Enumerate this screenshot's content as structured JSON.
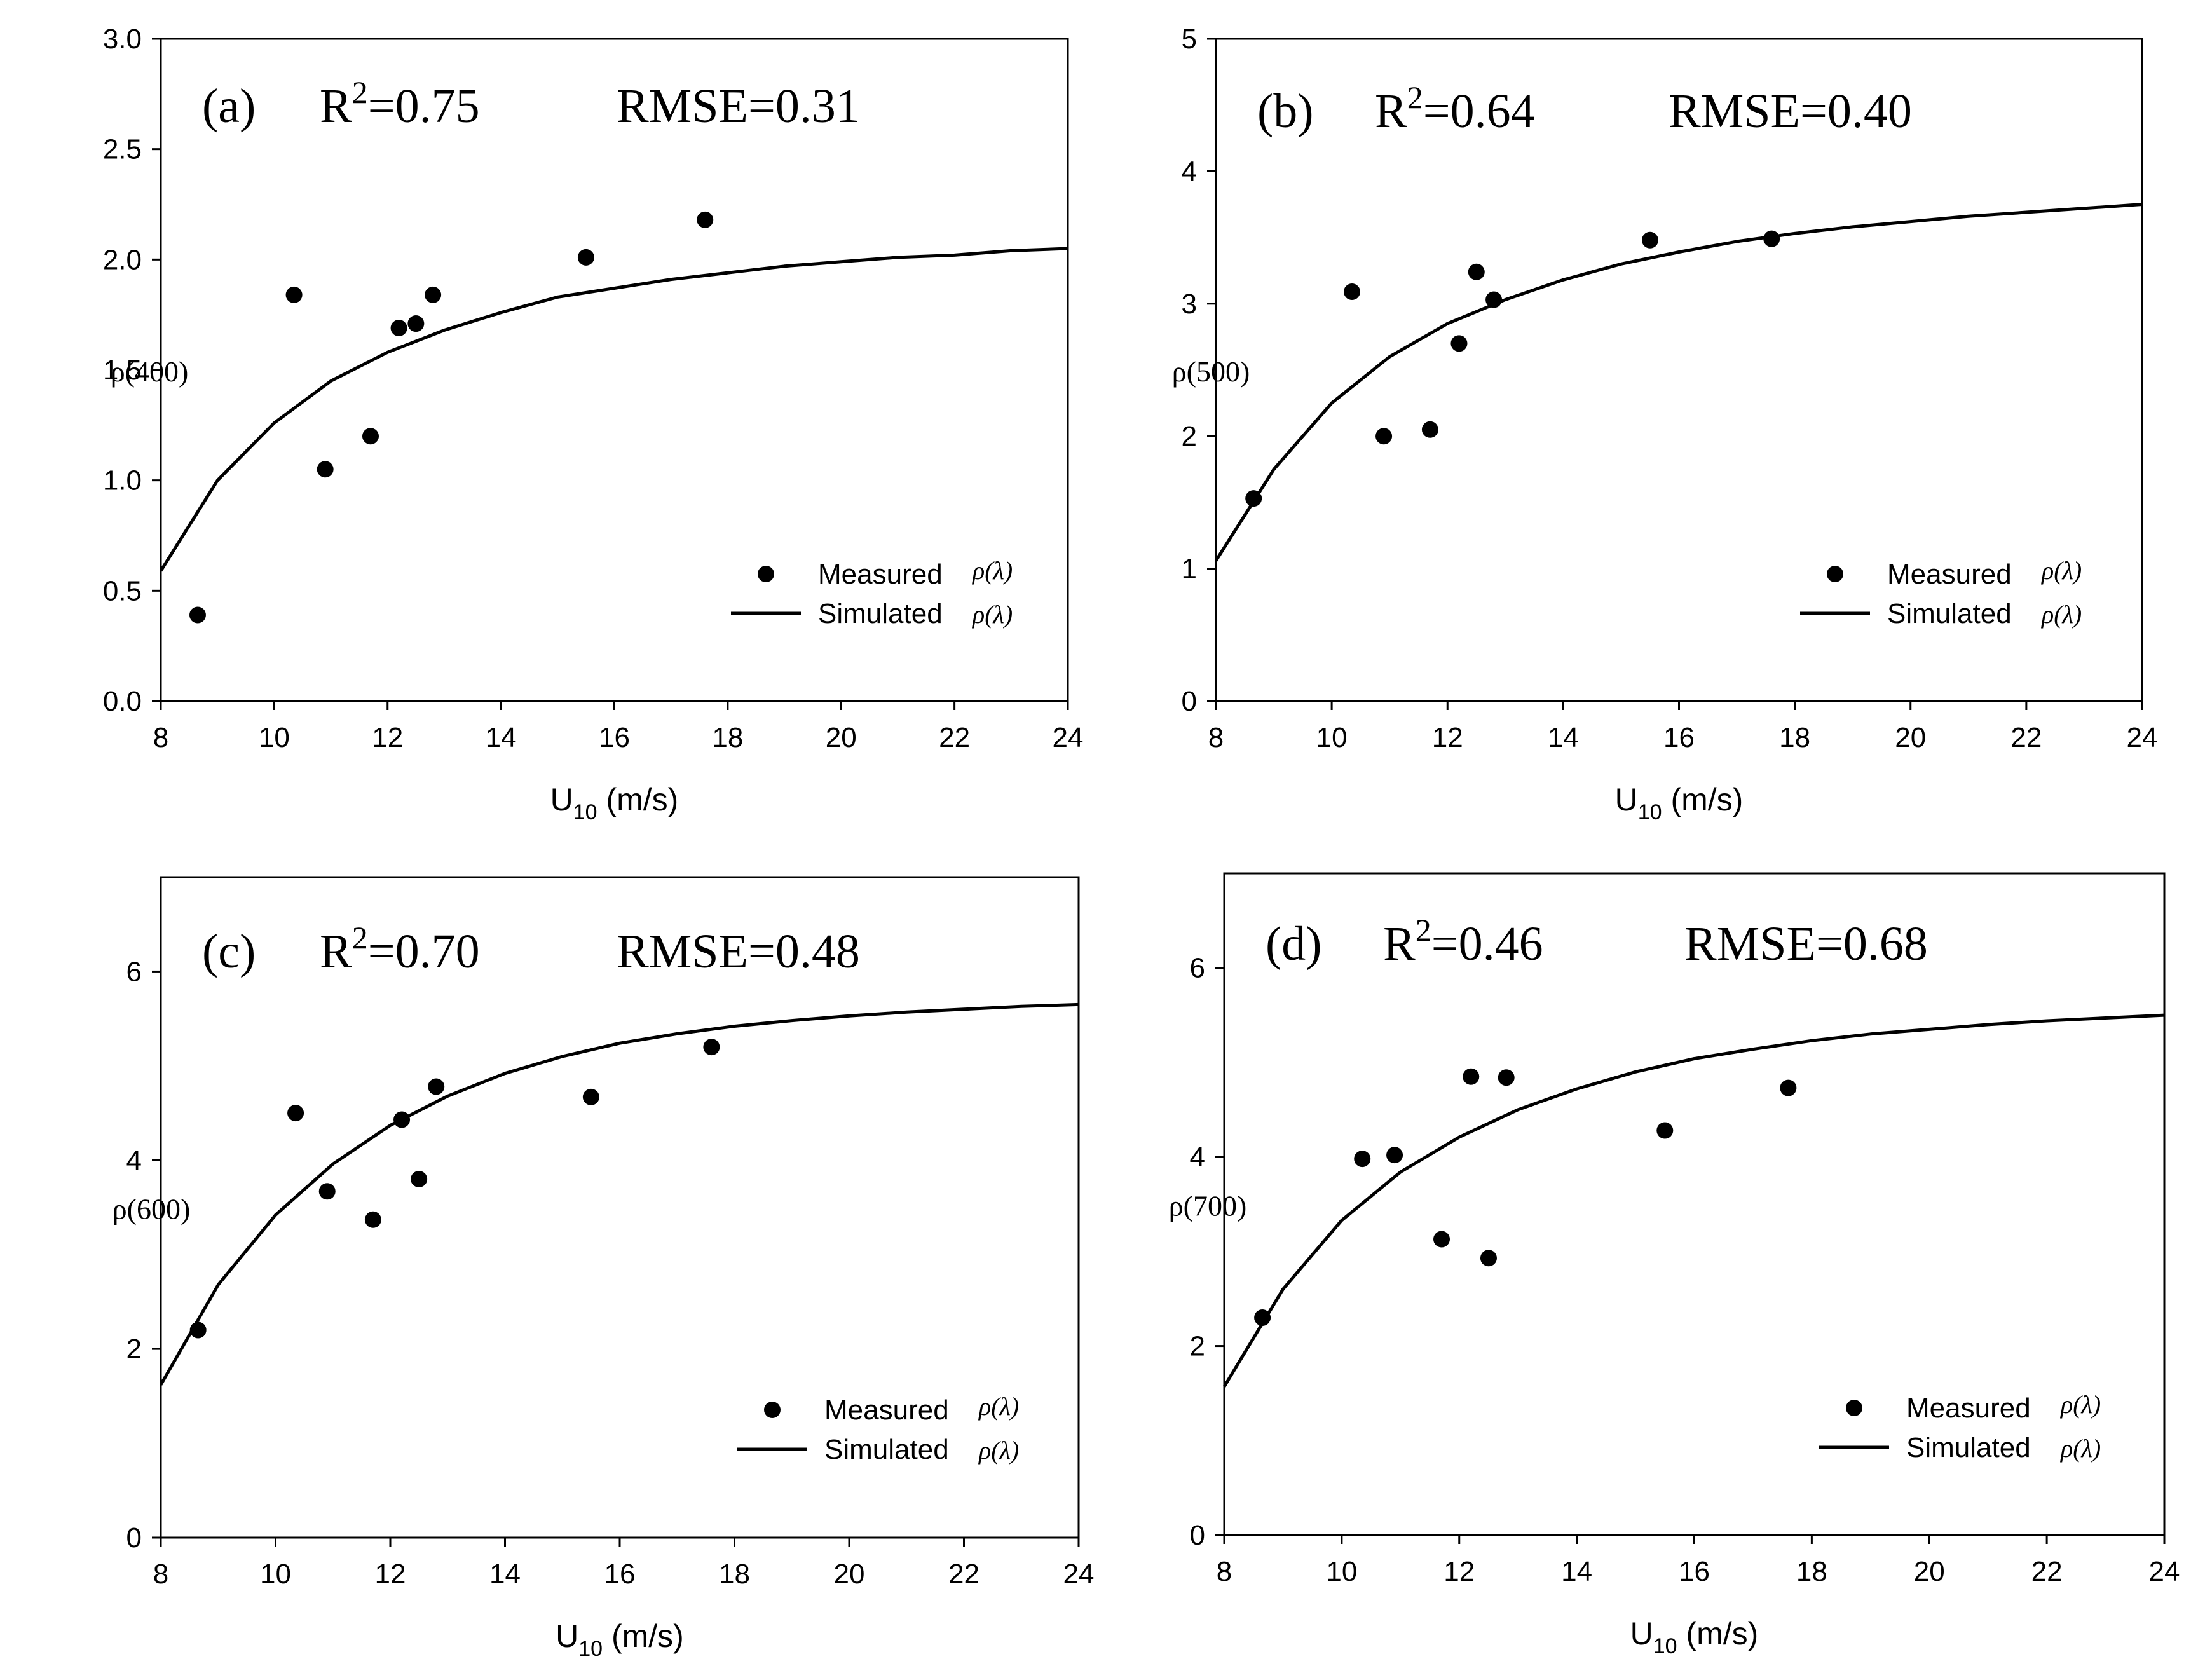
{
  "chart_data": [
    {
      "type": "scatter",
      "panel": "(a)",
      "r2_label": "R",
      "r2_sup": "2",
      "r2_value": "=0.75",
      "rmse_label": "RMSE=0.31",
      "xlabel_main": "U",
      "xlabel_sub": "10",
      "xlabel_unit": " (m/s)",
      "ylabel": "ρ(400)",
      "xlim": [
        8,
        24
      ],
      "ylim": [
        0,
        3
      ],
      "xticks": [
        "8",
        "10",
        "12",
        "14",
        "16",
        "18",
        "20",
        "22",
        "24"
      ],
      "yticks": [
        "0.0",
        "0.5",
        "1.0",
        "1.5",
        "2.0",
        "2.5",
        "3.0"
      ],
      "legend_measured": "Measured",
      "legend_simulated": "Simulated",
      "legend_symbol": "ρ(λ)",
      "measured": {
        "x": [
          8.65,
          10.35,
          10.9,
          11.7,
          12.2,
          12.5,
          12.8,
          15.5,
          17.6
        ],
        "y": [
          0.39,
          1.84,
          1.05,
          1.2,
          1.69,
          1.71,
          1.84,
          2.01,
          2.18
        ]
      },
      "simulated": {
        "x": [
          8,
          9,
          10,
          11,
          12,
          13,
          14,
          15,
          16,
          17,
          18,
          19,
          20,
          21,
          22,
          23,
          24
        ],
        "y": [
          0.59,
          1.0,
          1.26,
          1.45,
          1.58,
          1.68,
          1.76,
          1.83,
          1.87,
          1.91,
          1.94,
          1.97,
          1.99,
          2.01,
          2.02,
          2.04,
          2.05
        ]
      }
    },
    {
      "type": "scatter",
      "panel": "(b)",
      "r2_label": "R",
      "r2_sup": "2",
      "r2_value": "=0.64",
      "rmse_label": "RMSE=0.40",
      "xlabel_main": "U",
      "xlabel_sub": "10",
      "xlabel_unit": " (m/s)",
      "ylabel": "ρ(500)",
      "xlim": [
        8,
        24
      ],
      "ylim": [
        0,
        5
      ],
      "xticks": [
        "8",
        "10",
        "12",
        "14",
        "16",
        "18",
        "20",
        "22",
        "24"
      ],
      "yticks": [
        "0",
        "1",
        "2",
        "3",
        "4",
        "5"
      ],
      "legend_measured": "Measured",
      "legend_simulated": "Simulated",
      "legend_symbol": "ρ(λ)",
      "measured": {
        "x": [
          8.65,
          10.35,
          10.9,
          11.7,
          12.2,
          12.5,
          12.8,
          15.5,
          17.6
        ],
        "y": [
          1.53,
          3.09,
          2.0,
          2.05,
          2.7,
          3.24,
          3.03,
          3.48,
          3.49
        ]
      },
      "simulated": {
        "x": [
          8,
          9,
          10,
          11,
          12,
          13,
          14,
          15,
          16,
          17,
          18,
          19,
          20,
          21,
          22,
          23,
          24
        ],
        "y": [
          1.06,
          1.75,
          2.25,
          2.6,
          2.85,
          3.03,
          3.18,
          3.3,
          3.39,
          3.47,
          3.53,
          3.58,
          3.62,
          3.66,
          3.69,
          3.72,
          3.75
        ]
      }
    },
    {
      "type": "scatter",
      "panel": "(c)",
      "r2_label": "R",
      "r2_sup": "2",
      "r2_value": "=0.70",
      "rmse_label": "RMSE=0.48",
      "xlabel_main": "U",
      "xlabel_sub": "10",
      "xlabel_unit": " (m/s)",
      "ylabel": "ρ(600)",
      "xlim": [
        8,
        24
      ],
      "ylim": [
        0,
        7
      ],
      "xticks": [
        "8",
        "10",
        "12",
        "14",
        "16",
        "18",
        "20",
        "22",
        "24"
      ],
      "yticks": [
        "0",
        "2",
        "4",
        "6"
      ],
      "legend_measured": "Measured",
      "legend_simulated": "Simulated",
      "legend_symbol": "ρ(λ)",
      "measured": {
        "x": [
          8.65,
          10.35,
          10.9,
          11.7,
          12.2,
          12.5,
          12.8,
          15.5,
          17.6
        ],
        "y": [
          2.2,
          4.5,
          3.67,
          3.37,
          4.43,
          3.8,
          4.78,
          4.67,
          5.2
        ]
      },
      "simulated": {
        "x": [
          8,
          9,
          10,
          11,
          12,
          13,
          14,
          15,
          16,
          17,
          18,
          19,
          20,
          21,
          22,
          23,
          24
        ],
        "y": [
          1.62,
          2.68,
          3.42,
          3.96,
          4.37,
          4.68,
          4.92,
          5.1,
          5.24,
          5.34,
          5.42,
          5.48,
          5.53,
          5.57,
          5.6,
          5.63,
          5.65
        ]
      }
    },
    {
      "type": "scatter",
      "panel": "(d)",
      "r2_label": "R",
      "r2_sup": "2",
      "r2_value": "=0.46",
      "rmse_label": "RMSE=0.68",
      "xlabel_main": "U",
      "xlabel_sub": "10",
      "xlabel_unit": " (m/s)",
      "ylabel": "ρ(700)",
      "xlim": [
        8,
        24
      ],
      "ylim": [
        0,
        7
      ],
      "xticks": [
        "8",
        "10",
        "12",
        "14",
        "16",
        "18",
        "20",
        "22",
        "24"
      ],
      "yticks": [
        "0",
        "2",
        "4",
        "6"
      ],
      "legend_measured": "Measured",
      "legend_simulated": "Simulated",
      "legend_symbol": "ρ(λ)",
      "measured": {
        "x": [
          8.65,
          10.35,
          10.9,
          11.7,
          12.2,
          12.5,
          12.8,
          15.5,
          17.6
        ],
        "y": [
          2.3,
          3.98,
          4.02,
          3.13,
          4.85,
          2.93,
          4.84,
          4.28,
          4.73
        ]
      },
      "simulated": {
        "x": [
          8,
          9,
          10,
          11,
          12,
          13,
          14,
          15,
          16,
          17,
          18,
          19,
          20,
          21,
          22,
          23,
          24
        ],
        "y": [
          1.57,
          2.6,
          3.33,
          3.84,
          4.21,
          4.5,
          4.72,
          4.9,
          5.04,
          5.14,
          5.23,
          5.3,
          5.35,
          5.4,
          5.44,
          5.47,
          5.5
        ]
      }
    }
  ]
}
